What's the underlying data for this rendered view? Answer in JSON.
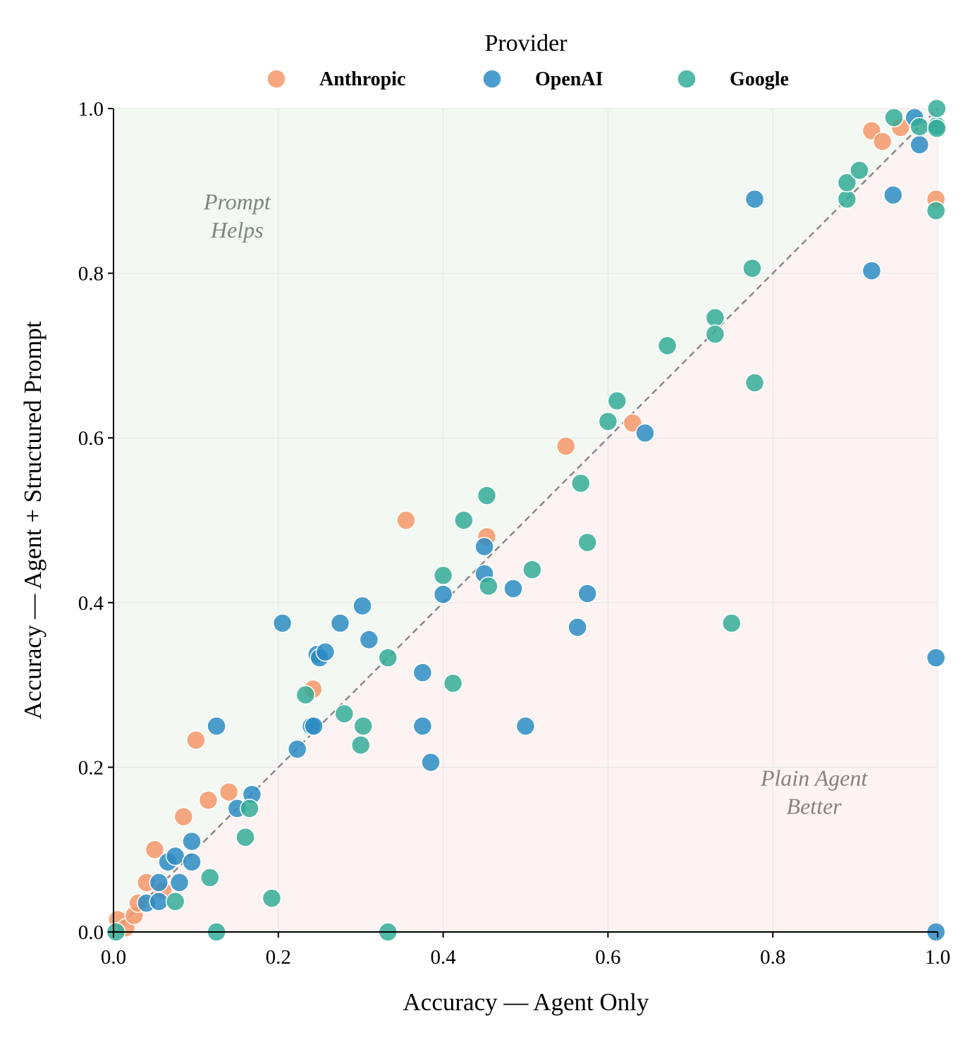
{
  "chart_data": {
    "type": "scatter",
    "xlabel": "Accuracy — Agent Only",
    "ylabel": "Accuracy — Agent + Structured Prompt",
    "xlim": [
      0,
      1
    ],
    "ylim": [
      0,
      1
    ],
    "x_ticks": [
      "0.0",
      "0.2",
      "0.4",
      "0.6",
      "0.8",
      "1.0"
    ],
    "y_ticks": [
      "0.0",
      "0.2",
      "0.4",
      "0.6",
      "0.8",
      "1.0"
    ],
    "grid": true,
    "diagonal_reference": "y = x (dashed)",
    "legend": {
      "title": "Provider",
      "placement": "top-center"
    },
    "annotations": [
      {
        "lines": [
          "Prompt",
          "Helps"
        ],
        "x": 0.15,
        "y": 0.87,
        "color": "#7a887a"
      },
      {
        "lines": [
          "Plain Agent",
          "Better"
        ],
        "x": 0.85,
        "y": 0.17,
        "color": "#8a7f7f"
      }
    ],
    "regions": {
      "above_diagonal_color": "#f3f8f2",
      "below_diagonal_color": "#fdf3f2"
    },
    "series": [
      {
        "name": "Anthropic",
        "color": "#f4986a",
        "points": [
          [
            0.005,
            0.015
          ],
          [
            0.015,
            0.005
          ],
          [
            0.025,
            0.02
          ],
          [
            0.03,
            0.035
          ],
          [
            0.04,
            0.06
          ],
          [
            0.05,
            0.1
          ],
          [
            0.06,
            0.05
          ],
          [
            0.085,
            0.14
          ],
          [
            0.1,
            0.233
          ],
          [
            0.115,
            0.16
          ],
          [
            0.14,
            0.17
          ],
          [
            0.242,
            0.295
          ],
          [
            0.355,
            0.5
          ],
          [
            0.453,
            0.48
          ],
          [
            0.549,
            0.59
          ],
          [
            0.63,
            0.618
          ],
          [
            0.92,
            0.973
          ],
          [
            0.933,
            0.96
          ],
          [
            0.955,
            0.977
          ],
          [
            0.998,
            0.89
          ]
        ]
      },
      {
        "name": "OpenAI",
        "color": "#2b8cc4",
        "points": [
          [
            0.04,
            0.035
          ],
          [
            0.055,
            0.06
          ],
          [
            0.055,
            0.037
          ],
          [
            0.066,
            0.085
          ],
          [
            0.075,
            0.092
          ],
          [
            0.08,
            0.06
          ],
          [
            0.095,
            0.11
          ],
          [
            0.095,
            0.085
          ],
          [
            0.125,
            0.25
          ],
          [
            0.15,
            0.15
          ],
          [
            0.168,
            0.167
          ],
          [
            0.205,
            0.375
          ],
          [
            0.223,
            0.222
          ],
          [
            0.24,
            0.25
          ],
          [
            0.243,
            0.25
          ],
          [
            0.247,
            0.337
          ],
          [
            0.25,
            0.333
          ],
          [
            0.257,
            0.34
          ],
          [
            0.275,
            0.375
          ],
          [
            0.302,
            0.396
          ],
          [
            0.31,
            0.355
          ],
          [
            0.375,
            0.315
          ],
          [
            0.375,
            0.25
          ],
          [
            0.385,
            0.206
          ],
          [
            0.4,
            0.41
          ],
          [
            0.45,
            0.435
          ],
          [
            0.45,
            0.468
          ],
          [
            0.485,
            0.417
          ],
          [
            0.5,
            0.25
          ],
          [
            0.563,
            0.37
          ],
          [
            0.575,
            0.411
          ],
          [
            0.645,
            0.606
          ],
          [
            0.778,
            0.89
          ],
          [
            0.92,
            0.803
          ],
          [
            0.946,
            0.895
          ],
          [
            0.972,
            0.989
          ],
          [
            0.978,
            0.956
          ],
          [
            0.998,
            0.333
          ],
          [
            0.998,
            0.0
          ]
        ]
      },
      {
        "name": "Google",
        "color": "#34ab98",
        "points": [
          [
            0.003,
            0.0
          ],
          [
            0.075,
            0.037
          ],
          [
            0.117,
            0.066
          ],
          [
            0.125,
            0.0
          ],
          [
            0.16,
            0.115
          ],
          [
            0.165,
            0.15
          ],
          [
            0.192,
            0.041
          ],
          [
            0.233,
            0.288
          ],
          [
            0.28,
            0.265
          ],
          [
            0.3,
            0.227
          ],
          [
            0.303,
            0.25
          ],
          [
            0.333,
            0.333
          ],
          [
            0.333,
            0.0
          ],
          [
            0.4,
            0.433
          ],
          [
            0.412,
            0.302
          ],
          [
            0.425,
            0.5
          ],
          [
            0.453,
            0.53
          ],
          [
            0.455,
            0.42
          ],
          [
            0.508,
            0.44
          ],
          [
            0.567,
            0.545
          ],
          [
            0.575,
            0.473
          ],
          [
            0.6,
            0.62
          ],
          [
            0.611,
            0.645
          ],
          [
            0.672,
            0.712
          ],
          [
            0.73,
            0.746
          ],
          [
            0.73,
            0.726
          ],
          [
            0.75,
            0.375
          ],
          [
            0.775,
            0.806
          ],
          [
            0.778,
            0.667
          ],
          [
            0.89,
            0.89
          ],
          [
            0.89,
            0.91
          ],
          [
            0.905,
            0.925
          ],
          [
            0.947,
            0.989
          ],
          [
            0.978,
            0.978
          ],
          [
            0.998,
            0.876
          ],
          [
            0.999,
            0.979
          ],
          [
            0.999,
            1.0
          ],
          [
            0.999,
            0.976
          ]
        ]
      }
    ]
  }
}
